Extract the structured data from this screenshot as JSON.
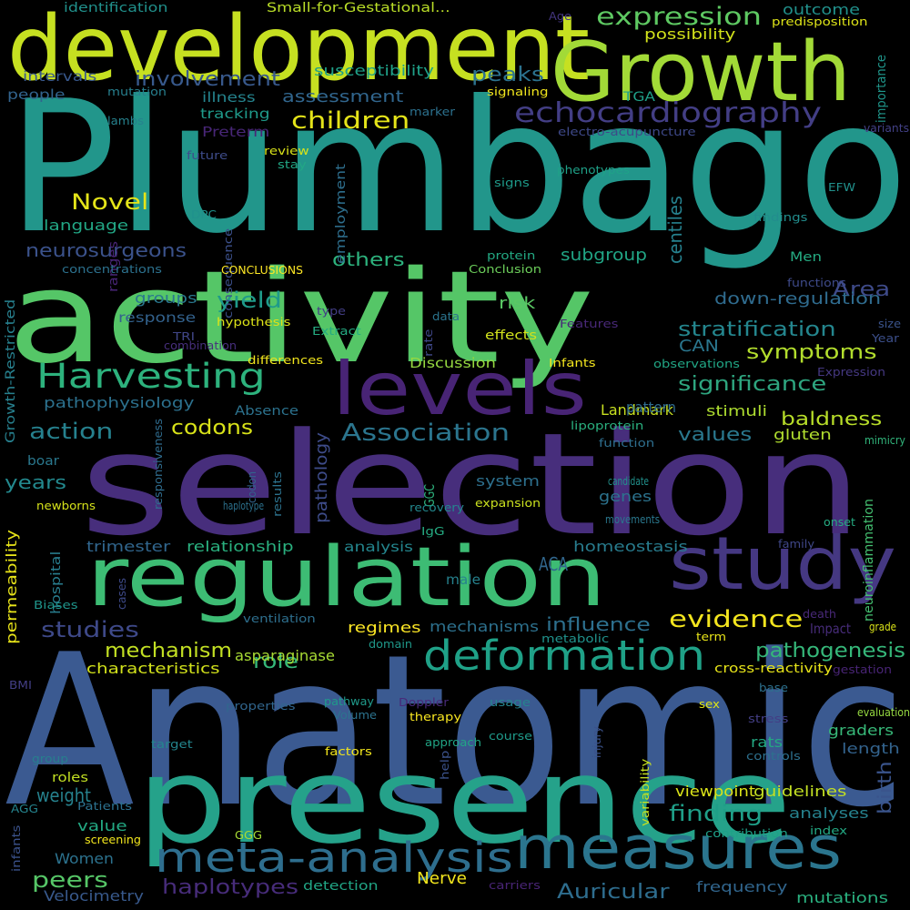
{
  "words": [
    {
      "text": "Anatomic",
      "color": "#3b5a91"
    },
    {
      "text": "Plumbago",
      "color": "#22968b"
    },
    {
      "text": "selection",
      "color": "#472e7c"
    },
    {
      "text": "activity",
      "color": "#55c667"
    },
    {
      "text": "presence",
      "color": "#25a28a"
    },
    {
      "text": "development",
      "color": "#c6e021"
    },
    {
      "text": "Growth",
      "color": "#a2da37"
    },
    {
      "text": "regulation",
      "color": "#3dbc74"
    },
    {
      "text": "study",
      "color": "#453882"
    },
    {
      "text": "levels",
      "color": "#482475"
    },
    {
      "text": "measures",
      "color": "#2b758e"
    },
    {
      "text": "meta-analysis",
      "color": "#2e6e8e"
    },
    {
      "text": "deformation",
      "color": "#1fa187"
    },
    {
      "text": "Harvesting",
      "color": "#2db27d"
    },
    {
      "text": "echocardiography",
      "color": "#433e85"
    },
    {
      "text": "expression",
      "color": "#5ec962"
    },
    {
      "text": "Association",
      "color": "#2b758e"
    },
    {
      "text": "children",
      "color": "#e5e419"
    },
    {
      "text": "evidence",
      "color": "#f3e51e"
    },
    {
      "text": "pathogenesis",
      "color": "#35b779"
    },
    {
      "text": "significance",
      "color": "#2ea57f"
    },
    {
      "text": "stratification",
      "color": "#24868e"
    },
    {
      "text": "finding",
      "color": "#1f9f88"
    },
    {
      "text": "symptoms",
      "color": "#b2dd2d"
    },
    {
      "text": "mechanism",
      "color": "#c2df23"
    },
    {
      "text": "involvement",
      "color": "#38598c"
    },
    {
      "text": "action",
      "color": "#26818e"
    },
    {
      "text": "codons",
      "color": "#d8e219"
    },
    {
      "text": "Novel",
      "color": "#e4e419"
    },
    {
      "text": "studies",
      "color": "#3e4989"
    },
    {
      "text": "yield",
      "color": "#1f9a8a"
    },
    {
      "text": "role",
      "color": "#35b779"
    },
    {
      "text": "Area",
      "color": "#3e4a89"
    },
    {
      "text": "peaks",
      "color": "#2c728e"
    },
    {
      "text": "influence",
      "color": "#2d708e"
    },
    {
      "text": "haplotypes",
      "color": "#472c7a"
    },
    {
      "text": "Auricular",
      "color": "#2e6d8e"
    },
    {
      "text": "baldness",
      "color": "#b8de29"
    },
    {
      "text": "values",
      "color": "#2a788e"
    },
    {
      "text": "centiles",
      "color": "#26818e"
    },
    {
      "text": "birth",
      "color": "#3a548c"
    },
    {
      "text": "neurosurgeons",
      "color": "#3b528b"
    },
    {
      "text": "weight",
      "color": "#26828e"
    },
    {
      "text": "peers",
      "color": "#56c667"
    },
    {
      "text": "years",
      "color": "#23898e"
    },
    {
      "text": "others",
      "color": "#2db27d"
    },
    {
      "text": "down-regulation",
      "color": "#2f6b8e"
    },
    {
      "text": "assessment",
      "color": "#31668e"
    },
    {
      "text": "susceptibility",
      "color": "#1fa088"
    },
    {
      "text": "outcome",
      "color": "#21918c"
    },
    {
      "text": "possibility",
      "color": "#d2e21b"
    },
    {
      "text": "identification",
      "color": "#21918c"
    },
    {
      "text": "Small-for-Gestational...",
      "color": "#bade28"
    },
    {
      "text": "Age",
      "color": "#453781"
    },
    {
      "text": "predisposition",
      "color": "#dde318"
    },
    {
      "text": "importance",
      "color": "#1f968b"
    },
    {
      "text": "intervals",
      "color": "#38588c"
    },
    {
      "text": "people",
      "color": "#32648e"
    },
    {
      "text": "mutation",
      "color": "#277f8e"
    },
    {
      "text": "illness",
      "color": "#25848e"
    },
    {
      "text": "tracking",
      "color": "#1f9a8a"
    },
    {
      "text": "TGA",
      "color": "#1fa088"
    },
    {
      "text": "signaling",
      "color": "#f0e51d"
    },
    {
      "text": "marker",
      "color": "#2c718e"
    },
    {
      "text": "lambs",
      "color": "#26828e"
    },
    {
      "text": "Preterm",
      "color": "#482677"
    },
    {
      "text": "electro-acupuncture",
      "color": "#3e4989"
    },
    {
      "text": "variants",
      "color": "#424086"
    },
    {
      "text": "Growth-Restricted",
      "color": "#27808e"
    },
    {
      "text": "ranges",
      "color": "#482576"
    },
    {
      "text": "review",
      "color": "#d8e219"
    },
    {
      "text": "future",
      "color": "#3e4c8a"
    },
    {
      "text": "stay",
      "color": "#22a785"
    },
    {
      "text": "employment",
      "color": "#2e6f8e"
    },
    {
      "text": "phenotypes",
      "color": "#1fa188"
    },
    {
      "text": "signs",
      "color": "#1e9b8a"
    },
    {
      "text": "DPC",
      "color": "#21918c"
    },
    {
      "text": "consequence",
      "color": "#3c508b"
    },
    {
      "text": "EFW",
      "color": "#21918c"
    },
    {
      "text": "language",
      "color": "#22a785"
    },
    {
      "text": "findings",
      "color": "#228d8d"
    },
    {
      "text": "concentrations",
      "color": "#2c718e"
    },
    {
      "text": "subgroup",
      "color": "#21a585"
    },
    {
      "text": "protein",
      "color": "#23a983"
    },
    {
      "text": "Conclusion",
      "color": "#6ccd5a"
    },
    {
      "text": "Men",
      "color": "#25ab82"
    },
    {
      "text": "functions",
      "color": "#3e4a89"
    },
    {
      "text": "CONCLUSIONS",
      "color": "#fde725"
    },
    {
      "text": "groups",
      "color": "#2a788e"
    },
    {
      "text": "response",
      "color": "#33628d"
    },
    {
      "text": "hypothesis",
      "color": "#dde318"
    },
    {
      "text": "type",
      "color": "#433e85"
    },
    {
      "text": "data",
      "color": "#2b748e"
    },
    {
      "text": "risk",
      "color": "#5ac864"
    },
    {
      "text": "rate",
      "color": "#3f4889"
    },
    {
      "text": "Features",
      "color": "#482878"
    },
    {
      "text": "size",
      "color": "#3a538b"
    },
    {
      "text": "Extract",
      "color": "#25ac82"
    },
    {
      "text": "effects",
      "color": "#d0e11c"
    },
    {
      "text": "CAN",
      "color": "#2a768e"
    },
    {
      "text": "Year",
      "color": "#3c4f8a"
    },
    {
      "text": "TRI",
      "color": "#404688"
    },
    {
      "text": "combination",
      "color": "#472f7d"
    },
    {
      "text": "differences",
      "color": "#f1e51d"
    },
    {
      "text": "Discussion",
      "color": "#95d840"
    },
    {
      "text": "Infants",
      "color": "#f4e61e"
    },
    {
      "text": "observations",
      "color": "#21a685"
    },
    {
      "text": "Expression",
      "color": "#453882"
    },
    {
      "text": "pathophysiology",
      "color": "#2c718e"
    },
    {
      "text": "Absence",
      "color": "#2c728e"
    },
    {
      "text": "Landmark",
      "color": "#c8e020"
    },
    {
      "text": "stimuli",
      "color": "#addc30"
    },
    {
      "text": "pattern",
      "color": "#2f6c8e"
    },
    {
      "text": "gluten",
      "color": "#b0dd2f"
    },
    {
      "text": "lipoprotein",
      "color": "#2ab07f"
    },
    {
      "text": "mimicry",
      "color": "#31b57b"
    },
    {
      "text": "function",
      "color": "#2e6e8e"
    },
    {
      "text": "responsiveness",
      "color": "#2f6c8e"
    },
    {
      "text": "boar",
      "color": "#2a788e"
    },
    {
      "text": "pathology",
      "color": "#3e4c8a"
    },
    {
      "text": "codon",
      "color": "#33638d"
    },
    {
      "text": "results",
      "color": "#2c728e"
    },
    {
      "text": "GGC",
      "color": "#2db27d"
    },
    {
      "text": "system",
      "color": "#2d708e"
    },
    {
      "text": "candidate",
      "color": "#21918c"
    },
    {
      "text": "genes",
      "color": "#2c738e"
    },
    {
      "text": "newborns",
      "color": "#d5e21a"
    },
    {
      "text": "haplotype",
      "color": "#2c718e"
    },
    {
      "text": "recovery",
      "color": "#23888e"
    },
    {
      "text": "expansion",
      "color": "#cae11f"
    },
    {
      "text": "movements",
      "color": "#2a788e"
    },
    {
      "text": "onset",
      "color": "#25ac82"
    },
    {
      "text": "neuroinflammation",
      "color": "#44bf70"
    },
    {
      "text": "IgG",
      "color": "#25ab82"
    },
    {
      "text": "ACA",
      "color": "#31678e"
    },
    {
      "text": "permeability",
      "color": "#e8e419"
    },
    {
      "text": "trimester",
      "color": "#31668e"
    },
    {
      "text": "relationship",
      "color": "#2ab07f"
    },
    {
      "text": "analysis",
      "color": "#24868e"
    },
    {
      "text": "homeostasis",
      "color": "#287c8e"
    },
    {
      "text": "family",
      "color": "#3f4788"
    },
    {
      "text": "hospital",
      "color": "#287d8e"
    },
    {
      "text": "male",
      "color": "#26828e"
    },
    {
      "text": "cases",
      "color": "#3e4a89"
    },
    {
      "text": "Biases",
      "color": "#1f958b"
    },
    {
      "text": "ventilation",
      "color": "#2e6f8e"
    },
    {
      "text": "regimes",
      "color": "#fde725"
    },
    {
      "text": "mechanisms",
      "color": "#2d718e"
    },
    {
      "text": "death",
      "color": "#482878"
    },
    {
      "text": "Impact",
      "color": "#472c7a"
    },
    {
      "text": "grade",
      "color": "#dae319"
    },
    {
      "text": "domain",
      "color": "#1f998a"
    },
    {
      "text": "metabolic",
      "color": "#20928c"
    },
    {
      "text": "term",
      "color": "#e7e419"
    },
    {
      "text": "asparaginase",
      "color": "#a8db34"
    },
    {
      "text": "characteristics",
      "color": "#d2e21b"
    },
    {
      "text": "cross-reactivity",
      "color": "#e7e419"
    },
    {
      "text": "gestation",
      "color": "#482475"
    },
    {
      "text": "BMI",
      "color": "#433e85"
    },
    {
      "text": "base",
      "color": "#2d718e"
    },
    {
      "text": "properties",
      "color": "#31668e"
    },
    {
      "text": "pathway",
      "color": "#1f9a8a"
    },
    {
      "text": "Volume",
      "color": "#2c738e"
    },
    {
      "text": "Doppler",
      "color": "#482979"
    },
    {
      "text": "usage",
      "color": "#25848e"
    },
    {
      "text": "sex",
      "color": "#dde318"
    },
    {
      "text": "evaluation",
      "color": "#95d840"
    },
    {
      "text": "therapy",
      "color": "#f8e621"
    },
    {
      "text": "stress",
      "color": "#433e85"
    },
    {
      "text": "course",
      "color": "#1f9a8a"
    },
    {
      "text": "graders",
      "color": "#37b878"
    },
    {
      "text": "target",
      "color": "#24868e"
    },
    {
      "text": "injury",
      "color": "#3b528b"
    },
    {
      "text": "rats",
      "color": "#23a983"
    },
    {
      "text": "length",
      "color": "#33638d"
    },
    {
      "text": "group",
      "color": "#277f8e"
    },
    {
      "text": "factors",
      "color": "#f1e51d"
    },
    {
      "text": "approach",
      "color": "#21a585"
    },
    {
      "text": "help",
      "color": "#3b528b"
    },
    {
      "text": "controls",
      "color": "#2d708e"
    },
    {
      "text": "variability",
      "color": "#c5e021"
    },
    {
      "text": "roles",
      "color": "#c2df23"
    },
    {
      "text": "viewpoint",
      "color": "#dae319"
    },
    {
      "text": "guidelines",
      "color": "#c2df23"
    },
    {
      "text": "AGG",
      "color": "#25848e"
    },
    {
      "text": "Patients",
      "color": "#2c718e"
    },
    {
      "text": "analyses",
      "color": "#26828e"
    },
    {
      "text": "infants",
      "color": "#3b528b"
    },
    {
      "text": "value",
      "color": "#23a983"
    },
    {
      "text": "GGG",
      "color": "#a8db34"
    },
    {
      "text": "contribution",
      "color": "#1fa188"
    },
    {
      "text": "index",
      "color": "#23a983"
    },
    {
      "text": "screening",
      "color": "#f1e51d"
    },
    {
      "text": "Women",
      "color": "#2c728e"
    },
    {
      "text": "Nerve",
      "color": "#f1e51d"
    },
    {
      "text": "frequency",
      "color": "#31668e"
    },
    {
      "text": "detection",
      "color": "#21a585"
    },
    {
      "text": "carriers",
      "color": "#482475"
    },
    {
      "text": "Velocimetry",
      "color": "#38598c"
    },
    {
      "text": "mutations",
      "color": "#2ab07f"
    }
  ]
}
